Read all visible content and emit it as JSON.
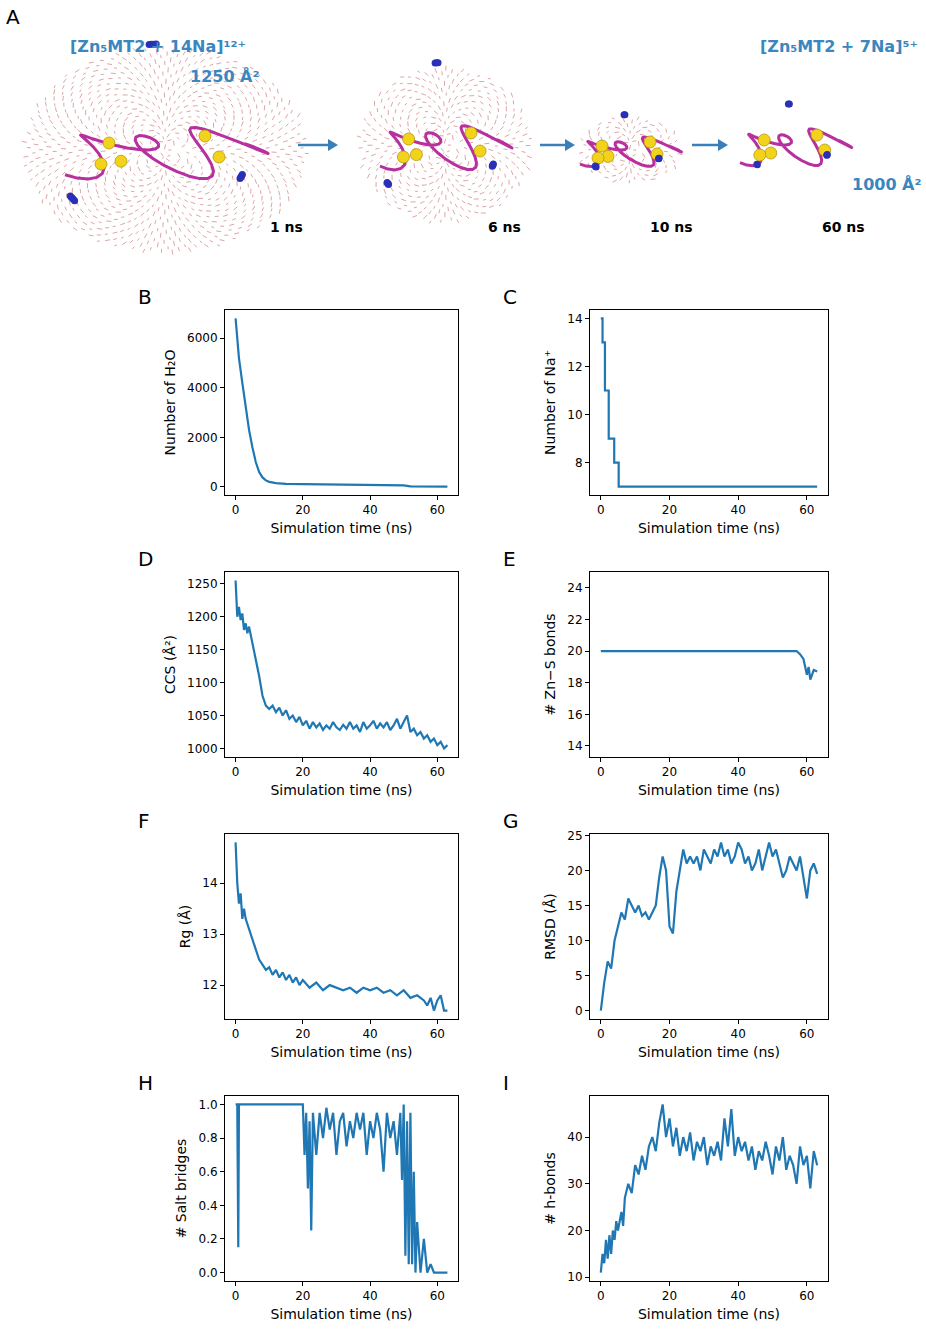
{
  "panel_a": {
    "panel": "A",
    "start_label": "[Zn₅MT2 + 14Na]¹²⁺",
    "start_ccs": "1250 Å²",
    "end_label": "[Zn₅MT2 + 7Na]⁵⁺",
    "end_ccs": "1000 Å²",
    "times": [
      "1 ns",
      "6 ns",
      "10 ns",
      "60 ns"
    ]
  },
  "chart_data": [
    {
      "panel": "B",
      "type": "line",
      "xlabel": "Simulation time (ns)",
      "ylabel": "Number of H₂O",
      "color": "#1f77b4",
      "x": [
        0,
        1,
        2,
        3,
        4,
        5,
        6,
        7,
        8,
        9,
        10,
        12,
        15,
        20,
        25,
        30,
        35,
        40,
        45,
        50,
        52,
        55,
        60,
        63
      ],
      "values": [
        6800,
        5200,
        4200,
        3200,
        2300,
        1600,
        1000,
        600,
        380,
        260,
        200,
        150,
        120,
        110,
        100,
        90,
        80,
        75,
        70,
        60,
        20,
        15,
        10,
        10
      ],
      "xlim": [
        -3.15,
        66.15
      ],
      "ylim": [
        -330,
        7140
      ],
      "xticks": [
        0,
        20,
        40,
        60
      ],
      "yticks": [
        0,
        2000,
        4000,
        6000
      ]
    },
    {
      "panel": "C",
      "type": "line",
      "xlabel": "Simulation time (ns)",
      "ylabel": "Number of Na⁺",
      "color": "#1f77b4",
      "x": [
        0,
        0.5,
        0.5,
        1.2,
        1.2,
        2.3,
        2.3,
        3.9,
        3.9,
        5.2,
        5.2,
        63
      ],
      "values": [
        14,
        14,
        13,
        13,
        11,
        11,
        9,
        9,
        8,
        8,
        7,
        7
      ],
      "xlim": [
        -3.15,
        66.15
      ],
      "ylim": [
        6.65,
        14.35
      ],
      "xticks": [
        0,
        20,
        40,
        60
      ],
      "yticks": [
        8,
        10,
        12,
        14
      ]
    },
    {
      "panel": "D",
      "type": "line",
      "xlabel": "Simulation time (ns)",
      "ylabel": "CCS (Å²)",
      "color": "#1f77b4",
      "x": [
        0,
        0.5,
        1,
        1.5,
        2,
        2.5,
        3,
        3.5,
        4,
        5,
        6,
        7,
        8,
        9,
        10,
        11,
        12,
        13,
        14,
        15,
        16,
        17,
        18,
        19,
        20,
        21,
        22,
        23,
        24,
        25,
        26,
        27,
        28,
        29,
        30,
        31,
        32,
        33,
        34,
        35,
        36,
        37,
        38,
        39,
        40,
        41,
        42,
        43,
        44,
        45,
        46,
        47,
        48,
        49,
        50,
        51,
        52,
        53,
        54,
        55,
        56,
        57,
        58,
        59,
        60,
        61,
        62,
        63
      ],
      "values": [
        1255,
        1200,
        1215,
        1195,
        1205,
        1180,
        1190,
        1175,
        1185,
        1160,
        1140,
        1110,
        1080,
        1065,
        1060,
        1065,
        1055,
        1062,
        1050,
        1058,
        1045,
        1050,
        1040,
        1048,
        1035,
        1042,
        1030,
        1040,
        1032,
        1038,
        1028,
        1035,
        1030,
        1040,
        1032,
        1028,
        1036,
        1030,
        1040,
        1030,
        1035,
        1025,
        1040,
        1030,
        1035,
        1042,
        1030,
        1038,
        1032,
        1040,
        1028,
        1035,
        1045,
        1030,
        1040,
        1050,
        1025,
        1030,
        1020,
        1025,
        1015,
        1020,
        1010,
        1015,
        1005,
        1010,
        1000,
        1005
      ],
      "xlim": [
        -3.15,
        66.15
      ],
      "ylim": [
        987,
        1268
      ],
      "xticks": [
        0,
        20,
        40,
        60
      ],
      "yticks": [
        1000,
        1050,
        1100,
        1150,
        1200,
        1250
      ]
    },
    {
      "panel": "E",
      "type": "line",
      "xlabel": "Simulation time (ns)",
      "ylabel": "# Zn−S bonds",
      "color": "#1f77b4",
      "x": [
        0,
        56,
        57,
        58,
        59,
        60,
        60.5,
        61,
        62,
        63
      ],
      "values": [
        20,
        20,
        20,
        19.8,
        19.5,
        18.5,
        19,
        18.2,
        18.8,
        18.7
      ],
      "xlim": [
        -3.15,
        66.15
      ],
      "ylim": [
        13.3,
        25
      ],
      "xticks": [
        0,
        20,
        40,
        60
      ],
      "yticks": [
        14,
        16,
        18,
        20,
        22,
        24
      ]
    },
    {
      "panel": "F",
      "type": "line",
      "xlabel": "Simulation time (ns)",
      "ylabel": "Rg (Å)",
      "color": "#1f77b4",
      "x": [
        0,
        0.5,
        1,
        1.5,
        2,
        2.5,
        3,
        4,
        5,
        6,
        7,
        8,
        9,
        10,
        11,
        12,
        13,
        14,
        15,
        16,
        17,
        18,
        19,
        20,
        22,
        24,
        26,
        28,
        30,
        32,
        34,
        36,
        38,
        40,
        42,
        44,
        46,
        48,
        50,
        52,
        54,
        56,
        57,
        58,
        59,
        60,
        61,
        62,
        63
      ],
      "values": [
        14.8,
        14.0,
        13.6,
        13.8,
        13.3,
        13.5,
        13.3,
        13.1,
        12.9,
        12.7,
        12.5,
        12.4,
        12.3,
        12.35,
        12.2,
        12.3,
        12.15,
        12.25,
        12.1,
        12.2,
        12.05,
        12.15,
        12.0,
        12.1,
        11.95,
        12.05,
        11.9,
        12.0,
        11.95,
        11.9,
        11.95,
        11.85,
        11.95,
        11.9,
        11.95,
        11.85,
        11.9,
        11.8,
        11.9,
        11.75,
        11.8,
        11.7,
        11.6,
        11.75,
        11.5,
        11.7,
        11.8,
        11.5,
        11.5
      ],
      "xlim": [
        -3.15,
        66.15
      ],
      "ylim": [
        11.335,
        14.965
      ],
      "xticks": [
        0,
        20,
        40,
        60
      ],
      "yticks": [
        12,
        13,
        14
      ]
    },
    {
      "panel": "G",
      "type": "line",
      "xlabel": "Simulation time (ns)",
      "ylabel": "RMSD (Å)",
      "color": "#1f77b4",
      "x": [
        0,
        1,
        2,
        3,
        4,
        5,
        6,
        7,
        8,
        9,
        10,
        11,
        12,
        13,
        14,
        15,
        16,
        17,
        18,
        19,
        20,
        21,
        22,
        23,
        24,
        25,
        26,
        27,
        28,
        29,
        30,
        31,
        32,
        33,
        34,
        35,
        36,
        37,
        38,
        39,
        40,
        41,
        42,
        43,
        44,
        45,
        46,
        47,
        48,
        49,
        50,
        51,
        52,
        53,
        54,
        55,
        56,
        57,
        58,
        59,
        60,
        61,
        62,
        63
      ],
      "values": [
        0,
        4,
        7,
        6,
        10,
        12,
        14,
        13,
        16,
        15,
        14,
        15,
        13.5,
        14,
        13,
        14,
        15,
        19,
        22,
        20,
        12,
        11,
        17,
        20,
        23,
        21,
        22,
        21,
        22,
        20,
        23,
        22,
        21,
        23,
        22,
        24,
        22,
        23,
        21,
        22,
        24,
        23,
        21,
        22,
        20,
        21,
        23,
        20,
        22,
        24,
        22,
        23,
        21,
        19,
        20,
        22,
        21,
        20,
        22,
        19,
        16,
        20,
        21,
        19.5
      ],
      "xlim": [
        -3.15,
        66.15
      ],
      "ylim": [
        -1.2,
        25.2
      ],
      "xticks": [
        0,
        20,
        40,
        60
      ],
      "yticks": [
        0,
        5,
        10,
        15,
        20,
        25
      ]
    },
    {
      "panel": "H",
      "type": "line",
      "xlabel": "Simulation time (ns)",
      "ylabel": "# Salt bridges",
      "color": "#1f77b4",
      "x": [
        0,
        0.5,
        0.8,
        1,
        20,
        20.5,
        21,
        21.5,
        22,
        22.5,
        23,
        24,
        25,
        26,
        27,
        28,
        29,
        30,
        31,
        32,
        33,
        34,
        35,
        36,
        37,
        38,
        39,
        40,
        41,
        42,
        43,
        44,
        45,
        46,
        47,
        48,
        49,
        49.5,
        50,
        50.5,
        51,
        51.5,
        52,
        52.5,
        53,
        53.5,
        54,
        55,
        56,
        57,
        58,
        59,
        60,
        61,
        62,
        63
      ],
      "values": [
        1,
        1,
        0.15,
        1,
        1,
        0.7,
        0.95,
        0.5,
        0.9,
        0.25,
        0.95,
        0.7,
        0.95,
        0.8,
        0.98,
        0.85,
        0.95,
        0.7,
        0.9,
        0.95,
        0.75,
        0.9,
        0.8,
        0.95,
        0.85,
        0.95,
        0.7,
        0.9,
        0.8,
        0.95,
        0.85,
        0.6,
        0.95,
        0.8,
        0.9,
        0.7,
        0.95,
        0.55,
        1.0,
        0.1,
        0.9,
        0.05,
        0.95,
        0.05,
        0.6,
        0,
        0.3,
        0,
        0.2,
        0,
        0.05,
        0,
        0,
        0,
        0,
        0
      ],
      "xlim": [
        -3.15,
        66.15
      ],
      "ylim": [
        -0.05,
        1.05
      ],
      "xticks": [
        0,
        20,
        40,
        60
      ],
      "yticks": [
        {
          "value": 0,
          "label": "0.0"
        },
        0.2,
        0.4,
        0.6,
        0.8,
        {
          "value": 1,
          "label": "1.0"
        }
      ]
    },
    {
      "panel": "I",
      "type": "line",
      "xlabel": "Simulation time (ns)",
      "ylabel": "# h-bonds",
      "color": "#1f77b4",
      "x": [
        0,
        0.5,
        1,
        1.5,
        2,
        2.5,
        3,
        3.5,
        4,
        4.5,
        5,
        6,
        6.5,
        7,
        8,
        9,
        10,
        11,
        12,
        13,
        14,
        15,
        16,
        17,
        18,
        19,
        20,
        21,
        22,
        23,
        24,
        25,
        26,
        27,
        28,
        29,
        30,
        31,
        32,
        33,
        34,
        35,
        36,
        37,
        38,
        39,
        40,
        41,
        42,
        43,
        44,
        45,
        46,
        47,
        48,
        49,
        50,
        51,
        52,
        53,
        54,
        55,
        56,
        57,
        58,
        59,
        60,
        61,
        62,
        63
      ],
      "values": [
        11,
        15,
        13,
        18,
        14,
        19,
        15,
        20,
        18,
        22,
        20,
        24,
        21,
        27,
        30,
        28,
        34,
        32,
        36,
        33,
        38,
        40,
        37,
        43,
        47,
        40,
        44,
        38,
        42,
        36,
        40,
        37,
        41,
        35,
        39,
        37,
        40,
        34,
        38,
        36,
        39,
        35,
        44,
        38,
        46,
        36,
        40,
        37,
        39,
        35,
        38,
        33,
        37,
        35,
        39,
        36,
        32,
        38,
        35,
        40,
        33,
        36,
        34,
        30,
        38,
        34,
        36,
        29,
        37,
        34
      ],
      "xlim": [
        -3.15,
        66.15
      ],
      "ylim": [
        9.2,
        48.8
      ],
      "xticks": [
        0,
        20,
        40,
        60
      ],
      "yticks": [
        10,
        20,
        30,
        40
      ]
    }
  ]
}
